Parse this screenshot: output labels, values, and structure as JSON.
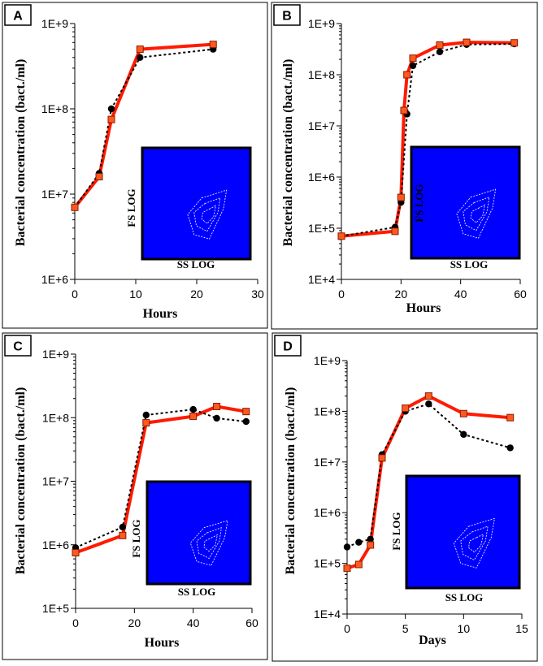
{
  "chart_data": [
    {
      "panel": "A",
      "type": "line",
      "x_label": "Hours",
      "y_label": "Bacterial concentration (bact./ml)",
      "x_ticks": [
        0,
        10,
        20,
        30
      ],
      "x_tick_labels": [
        "0",
        "10",
        "20",
        "30"
      ],
      "xlim": [
        0,
        30
      ],
      "y_scale": "log",
      "ylim": [
        1000000.0,
        1000000000.0
      ],
      "y_ticks": [
        1000000.0,
        10000000.0,
        100000000.0,
        1000000000.0
      ],
      "y_tick_labels": [
        "1E+6",
        "1E+7",
        "1E+8",
        "1E+9"
      ],
      "series": [
        {
          "style": "red-solid-square",
          "color": "#ff1a00",
          "x": [
            0,
            4,
            6,
            10.7,
            22.7
          ],
          "y": [
            7000000.0,
            16000000.0,
            75000000.0,
            500000000.0,
            570000000.0
          ]
        },
        {
          "style": "black-dotted-circle",
          "color": "#000000",
          "x": [
            0,
            4,
            6,
            10.7,
            22.7
          ],
          "y": [
            7000000.0,
            17500000.0,
            100000000.0,
            400000000.0,
            500000000.0
          ]
        }
      ],
      "inset": {
        "x_label": "SS LOG",
        "y_label": "FS LOG",
        "color": "#0000ff"
      }
    },
    {
      "panel": "B",
      "type": "line",
      "x_label": "Hours",
      "y_label": "Bacterial concentration (bact./ml)",
      "x_ticks": [
        0,
        20,
        40,
        60
      ],
      "x_tick_labels": [
        "0",
        "20",
        "40",
        "60"
      ],
      "xlim": [
        0,
        60
      ],
      "y_scale": "log",
      "ylim": [
        10000.0,
        1000000000.0
      ],
      "y_ticks": [
        10000.0,
        100000.0,
        1000000.0,
        10000000.0,
        100000000.0,
        1000000000.0
      ],
      "y_tick_labels": [
        "1E+4",
        "1E+5",
        "1E+6",
        "1E+7",
        "1E+8",
        "1E+9"
      ],
      "series": [
        {
          "style": "red-solid-square",
          "color": "#ff1a00",
          "x": [
            0,
            18,
            20,
            21,
            22,
            24,
            33,
            42,
            58
          ],
          "y": [
            70000.0,
            87000.0,
            400000.0,
            20000000.0,
            100000000.0,
            210000000.0,
            380000000.0,
            430000000.0,
            420000000.0
          ]
        },
        {
          "style": "black-dotted-circle",
          "color": "#000000",
          "x": [
            0,
            18,
            20,
            22,
            24,
            33,
            42,
            58
          ],
          "y": [
            70000.0,
            105000.0,
            320000.0,
            17000000.0,
            150000000.0,
            280000000.0,
            390000000.0,
            400000000.0
          ]
        }
      ],
      "inset": {
        "x_label": "SS LOG",
        "y_label": "FS LOG",
        "color": "#0000ff"
      }
    },
    {
      "panel": "C",
      "type": "line",
      "x_label": "Hours",
      "y_label": "Bacterial concentration (bact./ml)",
      "x_ticks": [
        0,
        20,
        40,
        60
      ],
      "x_tick_labels": [
        "0",
        "20",
        "40",
        "60"
      ],
      "xlim": [
        0,
        60
      ],
      "y_scale": "log",
      "ylim": [
        100000.0,
        1000000000.0
      ],
      "y_ticks": [
        100000.0,
        1000000.0,
        10000000.0,
        100000000.0,
        1000000000.0
      ],
      "y_tick_labels": [
        "1E+5",
        "1E+6",
        "1E+7",
        "1E+8",
        "1E+9"
      ],
      "series": [
        {
          "style": "red-solid-square",
          "color": "#ff1a00",
          "x": [
            0,
            16,
            24,
            40,
            48,
            58
          ],
          "y": [
            750000.0,
            1400000.0,
            83000000.0,
            105000000.0,
            150000000.0,
            125000000.0
          ]
        },
        {
          "style": "black-dotted-circle",
          "color": "#000000",
          "x": [
            0,
            16,
            24,
            40,
            48,
            58
          ],
          "y": [
            900000.0,
            1900000.0,
            110000000.0,
            135000000.0,
            98000000.0,
            87000000.0
          ]
        }
      ],
      "inset": {
        "x_label": "SS LOG",
        "y_label": "FS LOG",
        "color": "#0000ff"
      }
    },
    {
      "panel": "D",
      "type": "line",
      "x_label": "Days",
      "y_label": "Bacterial concentration (bact./ml)",
      "x_ticks": [
        0,
        5,
        10,
        15
      ],
      "x_tick_labels": [
        "0",
        "5",
        "10",
        "15"
      ],
      "xlim": [
        0,
        15
      ],
      "y_scale": "log",
      "ylim": [
        10000.0,
        1000000000.0
      ],
      "y_ticks": [
        10000.0,
        100000.0,
        1000000.0,
        10000000.0,
        100000000.0,
        1000000000.0
      ],
      "y_tick_labels": [
        "1E+4",
        "1E+5",
        "1E+6",
        "1E+7",
        "1E+8",
        "1E+9"
      ],
      "series": [
        {
          "style": "red-solid-square",
          "color": "#ff1a00",
          "x": [
            0,
            1,
            2,
            3,
            5,
            7,
            10,
            14
          ],
          "y": [
            80000.0,
            95000.0,
            230000.0,
            12000000.0,
            115000000.0,
            200000000.0,
            90000000.0,
            75000000.0
          ]
        },
        {
          "style": "black-dotted-circle",
          "color": "#000000",
          "x": [
            0,
            1,
            2,
            3,
            5,
            7,
            10,
            14
          ],
          "y": [
            210000.0,
            260000.0,
            300000.0,
            14000000.0,
            100000000.0,
            140000000.0,
            35000000.0,
            19000000.0
          ]
        }
      ],
      "inset": {
        "x_label": "SS LOG",
        "y_label": "FS LOG",
        "color": "#0000ff"
      }
    }
  ]
}
